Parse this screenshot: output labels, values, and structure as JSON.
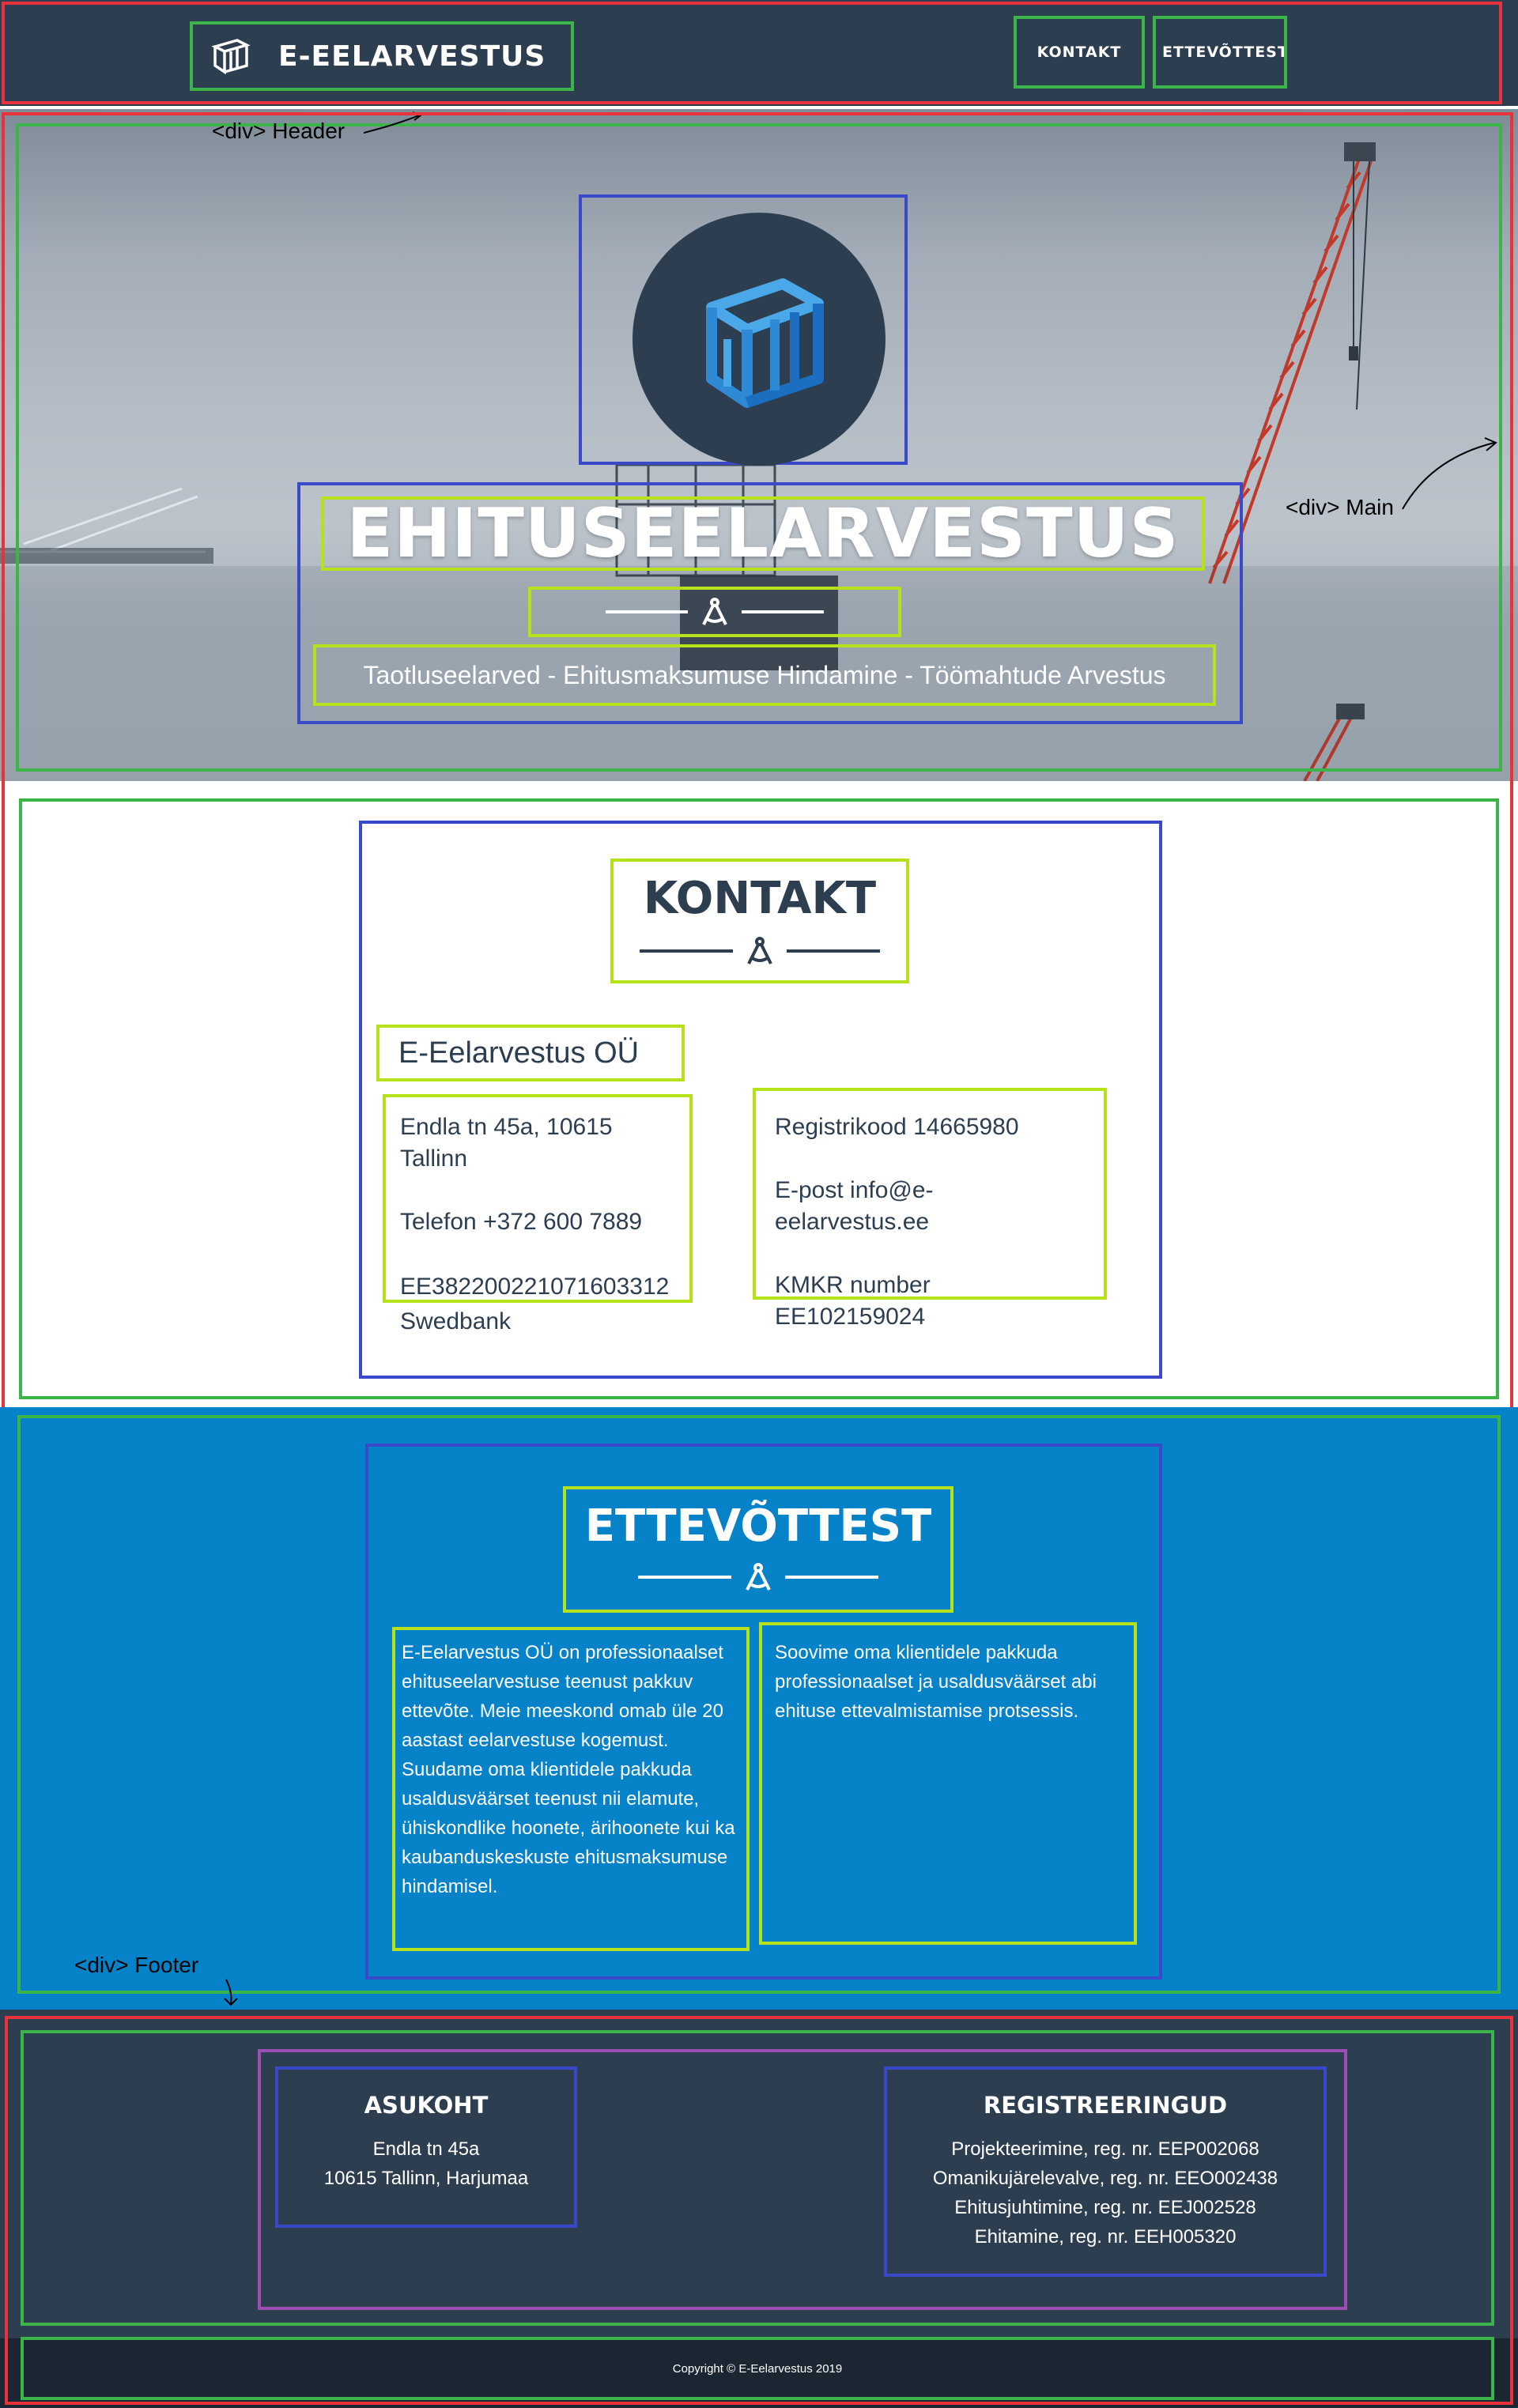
{
  "nav": {
    "brand": "E-EELARVESTUS",
    "links": [
      "KONTAKT",
      "ETTEVÕTTEST"
    ]
  },
  "hero": {
    "title": "EHITUSEELARVESTUS",
    "subtitle": "Taotluseelarved - Ehitusmaksumuse Hindamine - Töömahtude Arvestus"
  },
  "contact": {
    "title": "KONTAKT",
    "company": "E-Eelarvestus OÜ",
    "left": [
      "Endla tn 45a, 10615 Tallinn",
      "Telefon +372 600 7889",
      "EE382200221071603312 Swedbank"
    ],
    "right": [
      "Registrikood 14665980",
      "E-post info@e-eelarvestus.ee",
      "KMKR number EE102159024"
    ]
  },
  "about": {
    "title": "ETTEVÕTTEST",
    "left": "E-Eelarvestus OÜ on professionaalset ehituseelarvestuse teenust pakkuv ettevõte. Meie meeskond omab üle 20 aastast eelarvestuse kogemust. Suudame oma klientidele pakkuda usaldusväärset teenust nii elamute, ühiskondlike hoonete, ärihoonete kui ka kaubanduskeskuste ehitusmaksumuse hindamisel.",
    "right": "Soovime oma klientidele pakkuda professionaalset ja usaldusväärset abi ehituse ettevalmistamise protsessis."
  },
  "footer": {
    "location_title": "ASUKOHT",
    "location_lines": [
      "Endla tn 45a",
      "10615 Tallinn, Harjumaa"
    ],
    "reg_title": "REGISTREERINGUD",
    "reg_lines": [
      "Projekteerimine, reg. nr. EEP002068",
      "Omanikujärelevalve, reg. nr. EEO002438",
      "Ehitusjuhtimine, reg. nr. EEJ002528",
      "Ehitamine, reg. nr. EEH005320"
    ],
    "copyright": "Copyright © E-Eelarvestus 2019"
  },
  "annotations": {
    "header": "<div> Header",
    "main": "<div> Main",
    "footer": "<div> Footer"
  },
  "colors": {
    "navy": "#2c3e50",
    "blue": "#0582c8",
    "overlay_red": "#e8323c",
    "overlay_green": "#3bb54a",
    "overlay_blue": "#3949c9",
    "overlay_lime": "#b5e21b",
    "overlay_purple": "#9b4fb3"
  }
}
